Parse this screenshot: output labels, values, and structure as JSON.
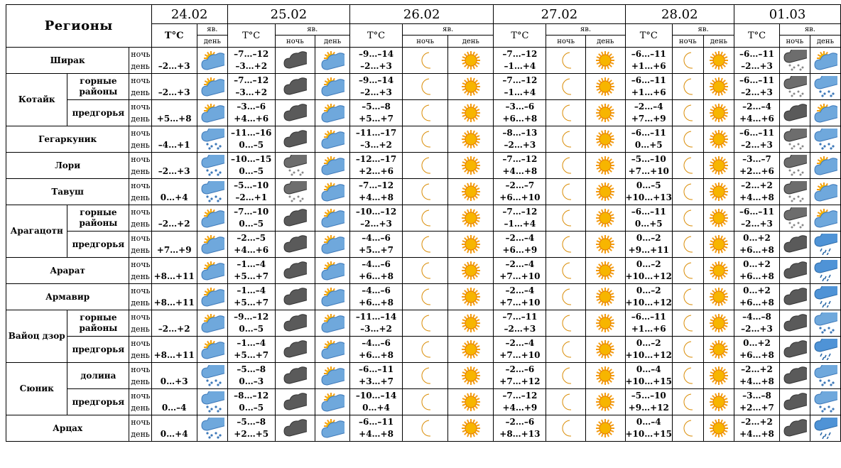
{
  "header": {
    "regions": "Регионы",
    "dates": [
      "24.02",
      "25.02",
      "26.02",
      "27.02",
      "28.02",
      "01.03"
    ],
    "temp": "T°C",
    "yav": "яв.",
    "night": "ночь",
    "day": "день"
  },
  "rows": [
    {
      "region": "Ширак",
      "sub": "",
      "rs": 1,
      "d0": {
        "day": "–2…+3",
        "icon": "sun-cloud"
      },
      "f": [
        {
          "n": "–7…–12",
          "d": "–3…+2",
          "ni": "dark-cloud",
          "di": "sun-cloud"
        },
        {
          "n": "–9…–14",
          "d": "–2…+3",
          "ni": "moon",
          "di": "sun"
        },
        {
          "n": "–7…–12",
          "d": "–1…+4",
          "ni": "moon",
          "di": "sun"
        },
        {
          "n": "–6…–11",
          "d": "+1…+6",
          "ni": "moon",
          "di": "sun"
        },
        {
          "n": "–6…–11",
          "d": "–2…+3",
          "ni": "snow-dark",
          "di": "sun-cloud"
        }
      ]
    },
    {
      "region": "Котайк",
      "sub": "горные районы",
      "rs": 2,
      "d0": {
        "day": "–2…+3",
        "icon": "sun-cloud"
      },
      "f": [
        {
          "n": "–7…–12",
          "d": "–3…+2",
          "ni": "dark-cloud",
          "di": "sun-cloud"
        },
        {
          "n": "–9…–14",
          "d": "–2…+3",
          "ni": "moon",
          "di": "sun"
        },
        {
          "n": "–7…–12",
          "d": "–1…+4",
          "ni": "moon",
          "di": "sun"
        },
        {
          "n": "–6…–11",
          "d": "+1…+6",
          "ni": "moon",
          "di": "sun"
        },
        {
          "n": "–6…–11",
          "d": "–2…+3",
          "ni": "snow-dark",
          "di": "snow-cloud"
        }
      ]
    },
    {
      "region": "",
      "sub": "предгорья",
      "rs": 0,
      "d0": {
        "day": "+5…+8",
        "icon": "sun-cloud"
      },
      "f": [
        {
          "n": "–3…–6",
          "d": "+4…+6",
          "ni": "dark-cloud",
          "di": "sun-cloud"
        },
        {
          "n": "–5…–8",
          "d": "+5…+7",
          "ni": "moon",
          "di": "sun"
        },
        {
          "n": "–3…–6",
          "d": "+6…+8",
          "ni": "moon",
          "di": "sun"
        },
        {
          "n": "–2…–4",
          "d": "+7…+9",
          "ni": "moon",
          "di": "sun"
        },
        {
          "n": "–2…–4",
          "d": "+4…+6",
          "ni": "dark-cloud",
          "di": "sun-cloud"
        }
      ]
    },
    {
      "region": "Гегаркуник",
      "sub": "",
      "rs": 1,
      "d0": {
        "day": "–4…+1",
        "icon": "snow-cloud"
      },
      "f": [
        {
          "n": "–11…–16",
          "d": "0…–5",
          "ni": "dark-cloud",
          "di": "sun-cloud"
        },
        {
          "n": "–11…–17",
          "d": "–3…+2",
          "ni": "moon",
          "di": "sun"
        },
        {
          "n": "–8…–13",
          "d": "–2…+3",
          "ni": "moon",
          "di": "sun"
        },
        {
          "n": "–6…–11",
          "d": "0…+5",
          "ni": "moon",
          "di": "sun"
        },
        {
          "n": "–6…–11",
          "d": "–2…+3",
          "ni": "snow-dark",
          "di": "snow-cloud"
        }
      ]
    },
    {
      "region": "Лори",
      "sub": "",
      "rs": 1,
      "d0": {
        "day": "–2…+3",
        "icon": "snow-cloud"
      },
      "f": [
        {
          "n": "–10…–15",
          "d": "0…–5",
          "ni": "snow-dark",
          "di": "sun-cloud"
        },
        {
          "n": "–12…–17",
          "d": "+2…+6",
          "ni": "moon",
          "di": "sun"
        },
        {
          "n": "–7…–12",
          "d": "+4…+8",
          "ni": "moon",
          "di": "sun"
        },
        {
          "n": "–5…–10",
          "d": "+7…+10",
          "ni": "moon",
          "di": "sun"
        },
        {
          "n": "–3…–7",
          "d": "+2…+6",
          "ni": "snow-dark",
          "di": "sun-cloud"
        }
      ]
    },
    {
      "region": "Тавуш",
      "sub": "",
      "rs": 1,
      "d0": {
        "day": "0…+4",
        "icon": "snow-cloud"
      },
      "f": [
        {
          "n": "–5…–10",
          "d": "–2…+1",
          "ni": "snow-dark",
          "di": "sun-cloud"
        },
        {
          "n": "–7…–12",
          "d": "+4…+8",
          "ni": "moon",
          "di": "sun"
        },
        {
          "n": "–2…–7",
          "d": "+6…+10",
          "ni": "moon",
          "di": "sun"
        },
        {
          "n": "0…–5",
          "d": "+10…+13",
          "ni": "moon",
          "di": "sun"
        },
        {
          "n": "–2…+2",
          "d": "+4…+8",
          "ni": "snow-dark",
          "di": "sun-cloud"
        }
      ]
    },
    {
      "region": "Арагацотн",
      "sub": "горные районы",
      "rs": 2,
      "d0": {
        "day": "–2…+2",
        "icon": "sun-cloud"
      },
      "f": [
        {
          "n": "–7…–10",
          "d": "0…–5",
          "ni": "dark-cloud",
          "di": "sun-cloud"
        },
        {
          "n": "–10…–12",
          "d": "–2…+3",
          "ni": "moon",
          "di": "sun"
        },
        {
          "n": "–7…–12",
          "d": "–1…+4",
          "ni": "moon",
          "di": "sun"
        },
        {
          "n": "–6…–11",
          "d": "0…+5",
          "ni": "moon",
          "di": "sun"
        },
        {
          "n": "–6…–11",
          "d": "–2…+3",
          "ni": "snow-dark",
          "di": "sun-cloud"
        }
      ]
    },
    {
      "region": "",
      "sub": "предгорья",
      "rs": 0,
      "d0": {
        "day": "+7…+9",
        "icon": "sun-cloud"
      },
      "f": [
        {
          "n": "–2…–5",
          "d": "+4…+6",
          "ni": "dark-cloud",
          "di": "sun-cloud"
        },
        {
          "n": "–4…–6",
          "d": "+5…+7",
          "ni": "moon",
          "di": "sun"
        },
        {
          "n": "–2…–4",
          "d": "+6…+9",
          "ni": "moon",
          "di": "sun"
        },
        {
          "n": "0…–2",
          "d": "+9…+11",
          "ni": "moon",
          "di": "sun"
        },
        {
          "n": "0…+2",
          "d": "+6…+8",
          "ni": "dark-cloud",
          "di": "rain-cloud"
        }
      ]
    },
    {
      "region": "Арарат",
      "sub": "",
      "rs": 1,
      "d0": {
        "day": "+8…+11",
        "icon": "sun-cloud"
      },
      "f": [
        {
          "n": "–1…–4",
          "d": "+5…+7",
          "ni": "dark-cloud",
          "di": "sun-cloud"
        },
        {
          "n": "–4…–6",
          "d": "+6…+8",
          "ni": "moon",
          "di": "sun"
        },
        {
          "n": "–2…–4",
          "d": "+7…+10",
          "ni": "moon",
          "di": "sun"
        },
        {
          "n": "0…–2",
          "d": "+10…+12",
          "ni": "moon",
          "di": "sun"
        },
        {
          "n": "0…+2",
          "d": "+6…+8",
          "ni": "dark-cloud",
          "di": "rain-cloud"
        }
      ]
    },
    {
      "region": "Армавир",
      "sub": "",
      "rs": 1,
      "d0": {
        "day": "+8…+11",
        "icon": "sun-cloud"
      },
      "f": [
        {
          "n": "–1…–4",
          "d": "+5…+7",
          "ni": "dark-cloud",
          "di": "sun-cloud"
        },
        {
          "n": "–4…–6",
          "d": "+6…+8",
          "ni": "moon",
          "di": "sun"
        },
        {
          "n": "–2…–4",
          "d": "+7…+10",
          "ni": "moon",
          "di": "sun"
        },
        {
          "n": "0…–2",
          "d": "+10…+12",
          "ni": "moon",
          "di": "sun"
        },
        {
          "n": "0…+2",
          "d": "+6…+8",
          "ni": "dark-cloud",
          "di": "rain-cloud"
        }
      ]
    },
    {
      "region": "Вайоц дзор",
      "sub": "горные районы",
      "rs": 2,
      "d0": {
        "day": "–2…+2",
        "icon": "sun-cloud"
      },
      "f": [
        {
          "n": "–9…–12",
          "d": "0…–5",
          "ni": "dark-cloud",
          "di": "sun-cloud"
        },
        {
          "n": "–11…–14",
          "d": "–3…+2",
          "ni": "moon",
          "di": "sun"
        },
        {
          "n": "–7…–11",
          "d": "–2…+3",
          "ni": "moon",
          "di": "sun"
        },
        {
          "n": "–6…–11",
          "d": "+1…+6",
          "ni": "moon",
          "di": "sun"
        },
        {
          "n": "–4…–8",
          "d": "–2…+3",
          "ni": "dark-cloud",
          "di": "snow-cloud"
        }
      ]
    },
    {
      "region": "",
      "sub": "предгорья",
      "rs": 0,
      "d0": {
        "day": "+8…+11",
        "icon": "sun-cloud"
      },
      "f": [
        {
          "n": "–1…–4",
          "d": "+5…+7",
          "ni": "dark-cloud",
          "di": "sun-cloud"
        },
        {
          "n": "–4…–6",
          "d": "+6…+8",
          "ni": "moon",
          "di": "sun"
        },
        {
          "n": "–2…–4",
          "d": "+7…+10",
          "ni": "moon",
          "di": "sun"
        },
        {
          "n": "0…–2",
          "d": "+10…+12",
          "ni": "moon",
          "di": "sun"
        },
        {
          "n": "0…+2",
          "d": "+6…+8",
          "ni": "dark-cloud",
          "di": "rain-cloud"
        }
      ]
    },
    {
      "region": "Сюник",
      "sub": "долина",
      "rs": 2,
      "d0": {
        "day": "0…+3",
        "icon": "snow-cloud"
      },
      "f": [
        {
          "n": "–5…–8",
          "d": "0…–3",
          "ni": "dark-cloud",
          "di": "sun-cloud"
        },
        {
          "n": "–6…–11",
          "d": "+3…+7",
          "ni": "moon",
          "di": "sun"
        },
        {
          "n": "–2…–6",
          "d": "+7…+12",
          "ni": "moon",
          "di": "sun"
        },
        {
          "n": "0…–4",
          "d": "+10…+15",
          "ni": "moon",
          "di": "sun"
        },
        {
          "n": "–2…+2",
          "d": "+4…+8",
          "ni": "dark-cloud",
          "di": "snow-cloud"
        }
      ]
    },
    {
      "region": "",
      "sub": "предгорья",
      "rs": 0,
      "d0": {
        "day": "0…–4",
        "icon": "snow-cloud"
      },
      "f": [
        {
          "n": "–8…–12",
          "d": "0…–5",
          "ni": "dark-cloud",
          "di": "sun-cloud"
        },
        {
          "n": "–10…–14",
          "d": "0…+4",
          "ni": "moon",
          "di": "sun"
        },
        {
          "n": "–7…–12",
          "d": "+4…+9",
          "ni": "moon",
          "di": "sun"
        },
        {
          "n": "–5…–10",
          "d": "+9…+12",
          "ni": "moon",
          "di": "sun"
        },
        {
          "n": "–3…–8",
          "d": "+2…+7",
          "ni": "dark-cloud",
          "di": "snow-cloud"
        }
      ]
    },
    {
      "region": "Арцах",
      "sub": "",
      "rs": 1,
      "d0": {
        "day": "0…+4",
        "icon": "snow-cloud"
      },
      "f": [
        {
          "n": "–5…–8",
          "d": "+2…+5",
          "ni": "dark-cloud",
          "di": "sun-cloud"
        },
        {
          "n": "–6…–11",
          "d": "+4…+8",
          "ni": "moon",
          "di": "sun"
        },
        {
          "n": "–2…–6",
          "d": "+8…+13",
          "ni": "moon",
          "di": "sun"
        },
        {
          "n": "0…–4",
          "d": "+10…+15",
          "ni": "moon",
          "di": "sun"
        },
        {
          "n": "–2…+2",
          "d": "+4…+8",
          "ni": "dark-cloud",
          "di": "rain-cloud"
        }
      ]
    }
  ]
}
